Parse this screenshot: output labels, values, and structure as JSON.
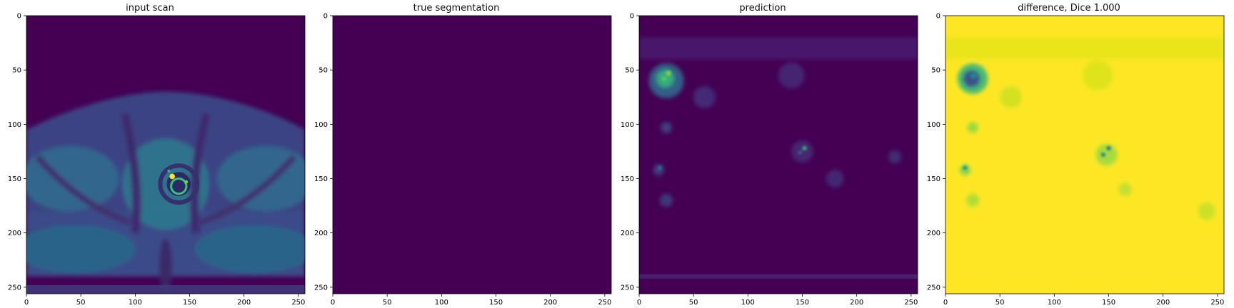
{
  "chart_data": [
    {
      "type": "heatmap",
      "title": "input scan",
      "image": "mri-axial-pelvis",
      "xlim": [
        0,
        256
      ],
      "ylim": [
        256,
        0
      ],
      "xticks": [
        0,
        50,
        100,
        150,
        200,
        250
      ],
      "yticks": [
        0,
        50,
        100,
        150,
        200,
        250
      ]
    },
    {
      "type": "heatmap",
      "title": "true segmentation",
      "image": "uniform-zero",
      "xlim": [
        0,
        256
      ],
      "ylim": [
        256,
        0
      ],
      "xticks": [
        0,
        50,
        100,
        150,
        200,
        250
      ],
      "yticks": [
        0,
        50,
        100,
        150,
        200,
        250
      ]
    },
    {
      "type": "heatmap",
      "title": "prediction",
      "image": "sparse-prediction",
      "xlim": [
        0,
        256
      ],
      "ylim": [
        256,
        0
      ],
      "xticks": [
        0,
        50,
        100,
        150,
        200,
        250
      ],
      "yticks": [
        0,
        50,
        100,
        150,
        200,
        250
      ]
    },
    {
      "type": "heatmap",
      "title": "difference, Dice 1.000",
      "image": "inverted-prediction",
      "xlim": [
        0,
        256
      ],
      "ylim": [
        256,
        0
      ],
      "xticks": [
        0,
        50,
        100,
        150,
        200,
        250
      ],
      "yticks": [
        0,
        50,
        100,
        150,
        200,
        250
      ]
    }
  ],
  "colors": {
    "cmap_low": "#440154",
    "cmap_midlow": "#3b528b",
    "cmap_mid": "#21918c",
    "cmap_midhigh": "#5ec962",
    "cmap_high": "#fde725"
  }
}
